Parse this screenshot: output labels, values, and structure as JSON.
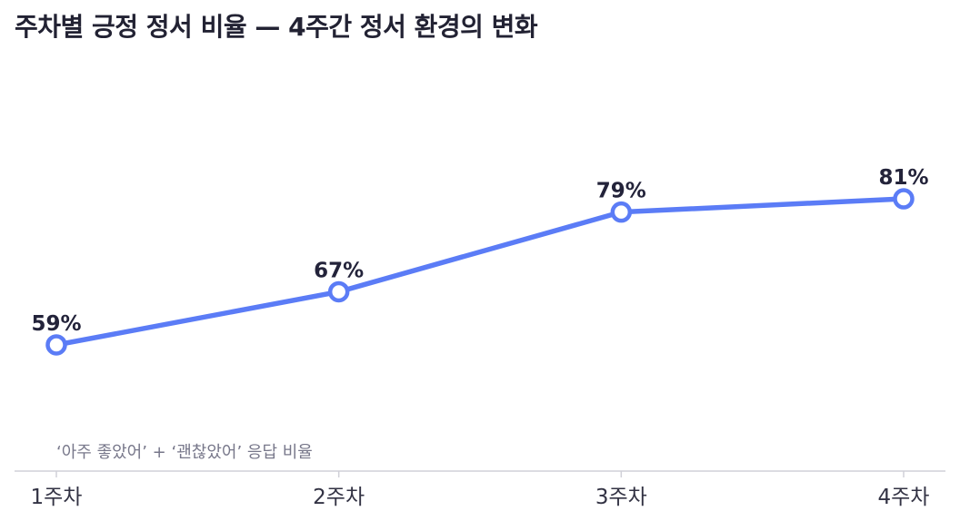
{
  "chart_data": {
    "type": "line",
    "title": "주차별 긍정 정서 비율 — 4주간 정서 환경의 변화",
    "categories": [
      "1주차",
      "2주차",
      "3주차",
      "4주차"
    ],
    "series": [
      {
        "values": [
          59,
          67,
          79,
          81
        ],
        "data_labels": [
          "59%",
          "67%",
          "79%",
          "81%"
        ]
      }
    ],
    "annotation": "‘아주 좋았어’ + ‘괜찮았어’ 응답 비율",
    "ylim": [
      40,
      100
    ],
    "grid": false,
    "line_color": "#5b7cf6",
    "axis_color": "#d0d0d8"
  }
}
